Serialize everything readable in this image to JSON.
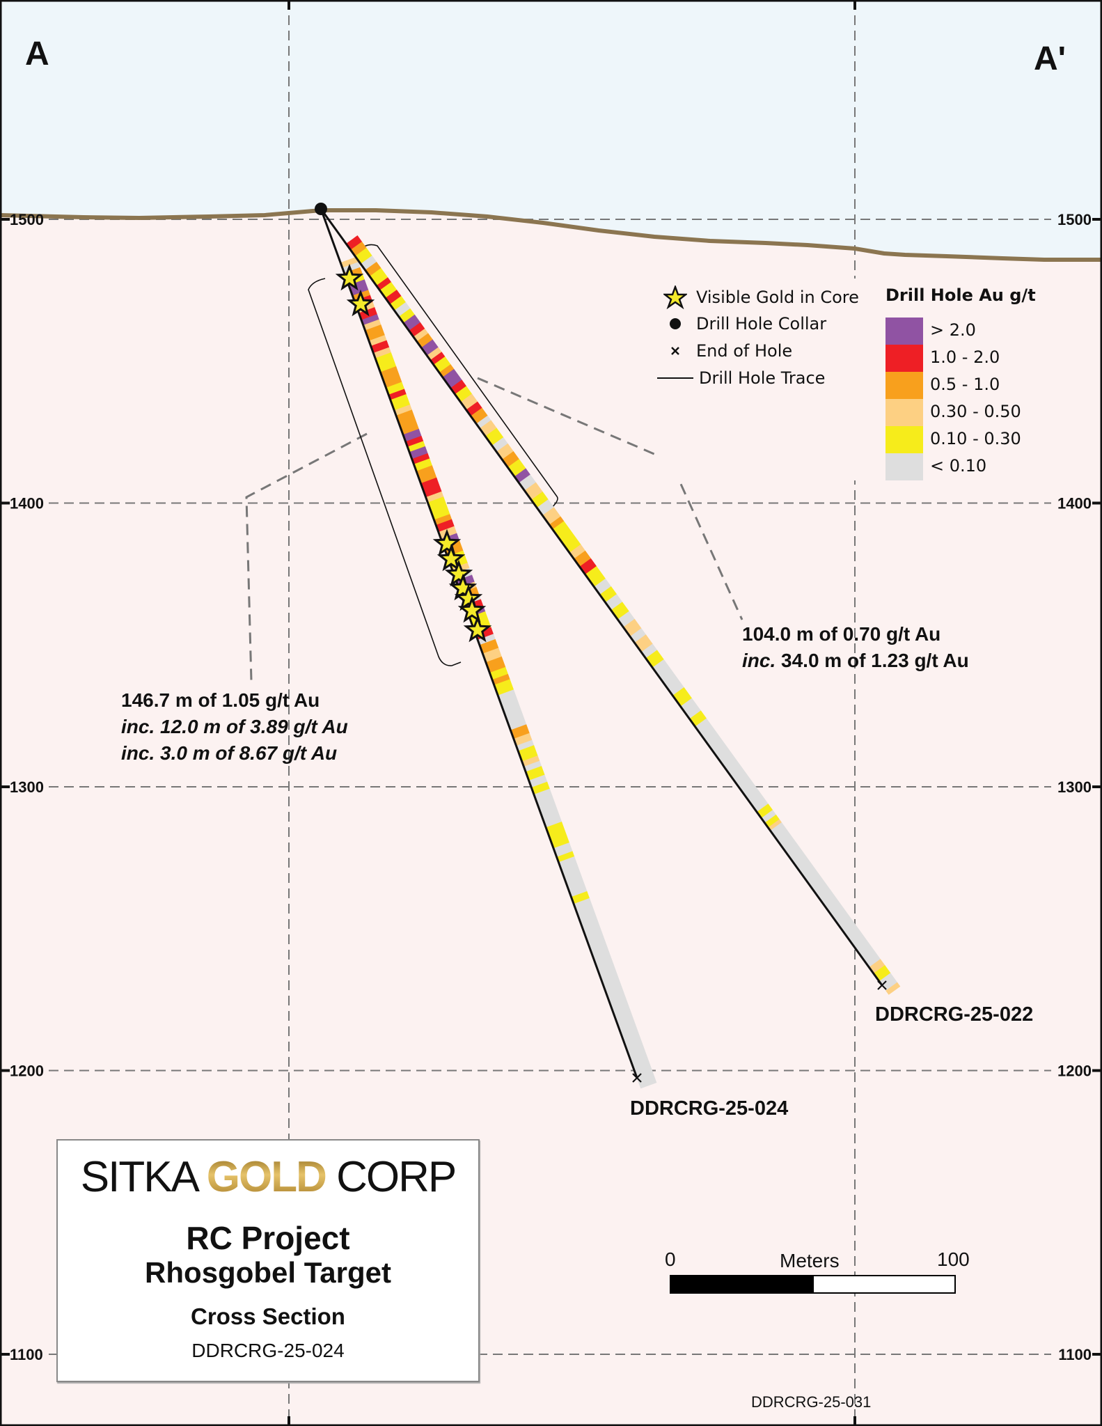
{
  "section": {
    "left_label": "A",
    "right_label": "A'",
    "elevation_ticks": [
      1500,
      1400,
      1300,
      1200,
      1100
    ],
    "colors": {
      "sky": "#eef6fa",
      "ground": "#fcf2f1",
      "topography": "#8b7550",
      "grid": "#777777"
    }
  },
  "legend": {
    "symbols": [
      {
        "icon": "star-icon",
        "label": "Visible Gold in Core"
      },
      {
        "icon": "collar-dot-icon",
        "label": "Drill Hole Collar"
      },
      {
        "icon": "end-of-hole-x-icon",
        "label": "End of Hole"
      },
      {
        "icon": "trace-line-icon",
        "label": "Drill Hole Trace"
      }
    ],
    "grade_title": "Drill Hole Au g/t",
    "grades": [
      {
        "key": "gt2",
        "label": "> 2.0",
        "color": "#9053a3"
      },
      {
        "key": "1to2",
        "label": "1.0 - 2.0",
        "color": "#ee1f25"
      },
      {
        "key": "05to1",
        "label": "0.5 - 1.0",
        "color": "#f8a01d"
      },
      {
        "key": "03to05",
        "label": "0.30 - 0.50",
        "color": "#fdd083"
      },
      {
        "key": "01to03",
        "label": "0.10 - 0.30",
        "color": "#f6ec1b"
      },
      {
        "key": "lt01",
        "label": "< 0.10",
        "color": "#dedede"
      }
    ]
  },
  "holes": [
    {
      "id": "DDRCRG-25-024",
      "label": "DDRCRG-25-024",
      "visible_gold_count": 9,
      "intercept": {
        "main": "146.7 m of 1.05 g/t Au",
        "inc1": "inc. 12.0 m of 3.89 g/t Au",
        "inc2": "inc. 3.0 m of 8.67 g/t Au"
      }
    },
    {
      "id": "DDRCRG-25-022",
      "label": "DDRCRG-25-022",
      "intercept": {
        "main": "104.0 m of 0.70 g/t Au",
        "inc_prefix": "inc.",
        "inc1": "34.0 m of 1.23 g/t Au"
      }
    }
  ],
  "scale_bar": {
    "start_label": "0",
    "unit_label": "Meters",
    "end_label": "100"
  },
  "title_block": {
    "logo_left": "SITKA",
    "logo_gold": "GOLD",
    "logo_right": "CORP",
    "project": "RC Project",
    "target": "Rhosgobel Target",
    "section_type": "Cross Section",
    "section_hole": "DDRCRG-25-024"
  },
  "adjacent_section_label": "DDRCRG-25-031"
}
